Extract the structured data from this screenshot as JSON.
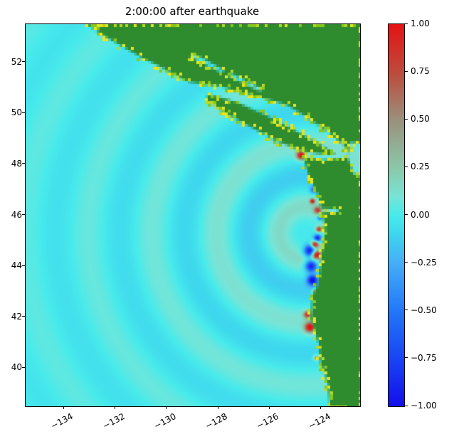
{
  "chart_data": {
    "type": "heatmap",
    "title": "2:00:00 after earthquake",
    "xlabel": "",
    "ylabel": "",
    "xlim": [
      -135.5,
      -122.5
    ],
    "ylim": [
      38.5,
      53.5
    ],
    "xticks": [
      -134,
      -132,
      -130,
      -128,
      -126,
      -124
    ],
    "xtick_labels": [
      "−134",
      "−132",
      "−130",
      "−128",
      "−126",
      "−124"
    ],
    "yticks": [
      52,
      50,
      48,
      46,
      44,
      42,
      40
    ],
    "ytick_labels": [
      "52",
      "50",
      "48",
      "46",
      "44",
      "42",
      "40"
    ],
    "grid": false,
    "colorbar": {
      "vmin": -1.0,
      "vmax": 1.0,
      "ticks": [
        1.0,
        0.75,
        0.5,
        0.25,
        0.0,
        -0.25,
        -0.5,
        -0.75,
        -1.0
      ],
      "tick_labels": [
        "1.00",
        "0.75",
        "0.50",
        "0.25",
        "0.00",
        "−0.25",
        "−0.50",
        "−0.75",
        "−1.00"
      ],
      "position": "right"
    },
    "colormap_stops": [
      [
        -1.0,
        20,
        15,
        235
      ],
      [
        -0.75,
        25,
        70,
        245
      ],
      [
        -0.5,
        35,
        120,
        248
      ],
      [
        -0.25,
        70,
        175,
        248
      ],
      [
        -0.1,
        62,
        215,
        238
      ],
      [
        0.0,
        72,
        235,
        235
      ],
      [
        0.1,
        122,
        228,
        214
      ],
      [
        0.25,
        140,
        200,
        170
      ],
      [
        0.5,
        155,
        145,
        125
      ],
      [
        0.75,
        190,
        75,
        60
      ],
      [
        1.0,
        230,
        20,
        20
      ]
    ],
    "ocean_zero_value": 0.0,
    "epicenter": {
      "lon": -124.6,
      "lat": 45.3
    },
    "wave": {
      "wavelength_deg": 2.5,
      "phase_deg": 2.875,
      "amplitude": 0.18,
      "decay_deg": 8
    },
    "coast_hotspots": [
      {
        "lon": -124.8,
        "lat": 48.35,
        "v": 1.0,
        "r": 0.12
      },
      {
        "lon": -124.3,
        "lat": 47.0,
        "v": -0.5,
        "r": 0.1
      },
      {
        "lon": -124.35,
        "lat": 46.55,
        "v": 0.9,
        "r": 0.07
      },
      {
        "lon": -124.15,
        "lat": 46.2,
        "v": 0.7,
        "r": 0.1
      },
      {
        "lon": -124.05,
        "lat": 45.9,
        "v": -0.6,
        "r": 0.08
      },
      {
        "lon": -124.1,
        "lat": 45.45,
        "v": 0.8,
        "r": 0.08
      },
      {
        "lon": -124.15,
        "lat": 45.1,
        "v": -0.9,
        "r": 0.1
      },
      {
        "lon": -124.25,
        "lat": 44.85,
        "v": 1.0,
        "r": 0.1
      },
      {
        "lon": -124.45,
        "lat": 44.6,
        "v": -1.0,
        "r": 0.16
      },
      {
        "lon": -124.2,
        "lat": 44.45,
        "v": 1.0,
        "r": 0.12
      },
      {
        "lon": -124.4,
        "lat": 44.0,
        "v": -1.0,
        "r": 0.16
      },
      {
        "lon": -124.35,
        "lat": 43.45,
        "v": -1.0,
        "r": 0.14
      },
      {
        "lon": -124.25,
        "lat": 43.0,
        "v": 0.6,
        "r": 0.08
      },
      {
        "lon": -124.55,
        "lat": 42.1,
        "v": 0.8,
        "r": 0.1
      },
      {
        "lon": -124.45,
        "lat": 41.6,
        "v": 1.0,
        "r": 0.14
      },
      {
        "lon": -124.2,
        "lat": 40.4,
        "v": 0.5,
        "r": 0.08
      }
    ],
    "land": {
      "color": "#2e8b2e",
      "mainland": [
        [
          -133.3,
          53.6
        ],
        [
          -132.2,
          52.9
        ],
        [
          -131.0,
          52.2
        ],
        [
          -130.0,
          51.7
        ],
        [
          -129.2,
          51.25
        ],
        [
          -127.9,
          51.05
        ],
        [
          -126.6,
          50.7
        ],
        [
          -125.4,
          50.35
        ],
        [
          -124.6,
          49.85
        ],
        [
          -123.8,
          49.3
        ],
        [
          -123.15,
          48.75
        ],
        [
          -123.0,
          48.3
        ],
        [
          -124.0,
          48.2
        ],
        [
          -124.75,
          48.3
        ],
        [
          -124.55,
          47.6
        ],
        [
          -124.2,
          46.9
        ],
        [
          -124.05,
          46.25
        ],
        [
          -123.9,
          45.5
        ],
        [
          -124.0,
          44.8
        ],
        [
          -124.1,
          44.0
        ],
        [
          -124.2,
          43.3
        ],
        [
          -124.4,
          42.9
        ],
        [
          -124.45,
          42.0
        ],
        [
          -124.15,
          41.0
        ],
        [
          -124.1,
          40.4
        ],
        [
          -123.8,
          39.5
        ],
        [
          -123.7,
          38.4
        ],
        [
          -122.4,
          38.4
        ],
        [
          -122.4,
          53.6
        ]
      ],
      "vancouver_island": [
        [
          -128.45,
          50.78
        ],
        [
          -127.3,
          50.45
        ],
        [
          -126.2,
          49.95
        ],
        [
          -125.1,
          49.35
        ],
        [
          -124.2,
          48.85
        ],
        [
          -123.5,
          48.45
        ],
        [
          -123.8,
          48.38
        ],
        [
          -124.7,
          48.52
        ],
        [
          -125.8,
          48.95
        ],
        [
          -126.9,
          49.55
        ],
        [
          -127.95,
          50.15
        ],
        [
          -128.5,
          50.55
        ]
      ],
      "water_channels": [
        [
          [
            -122.95,
            48.9
          ],
          [
            -122.5,
            48.85
          ],
          [
            -122.5,
            47.55
          ],
          [
            -122.8,
            47.65
          ],
          [
            -123.05,
            48.35
          ]
        ],
        [
          [
            -127.6,
            51.6
          ],
          [
            -126.3,
            50.95
          ],
          [
            -126.45,
            50.9
          ],
          [
            -127.7,
            51.5
          ]
        ],
        [
          [
            -129.0,
            52.35
          ],
          [
            -127.8,
            51.7
          ],
          [
            -127.95,
            51.62
          ],
          [
            -129.15,
            52.25
          ]
        ],
        [
          [
            -124.1,
            46.3
          ],
          [
            -123.4,
            46.28
          ],
          [
            -123.4,
            46.18
          ],
          [
            -124.1,
            46.15
          ]
        ]
      ]
    },
    "coast_speckles": {
      "colors": [
        "#b8d825",
        "#e6e61e",
        "#86c81e"
      ],
      "density": 0.32
    }
  }
}
